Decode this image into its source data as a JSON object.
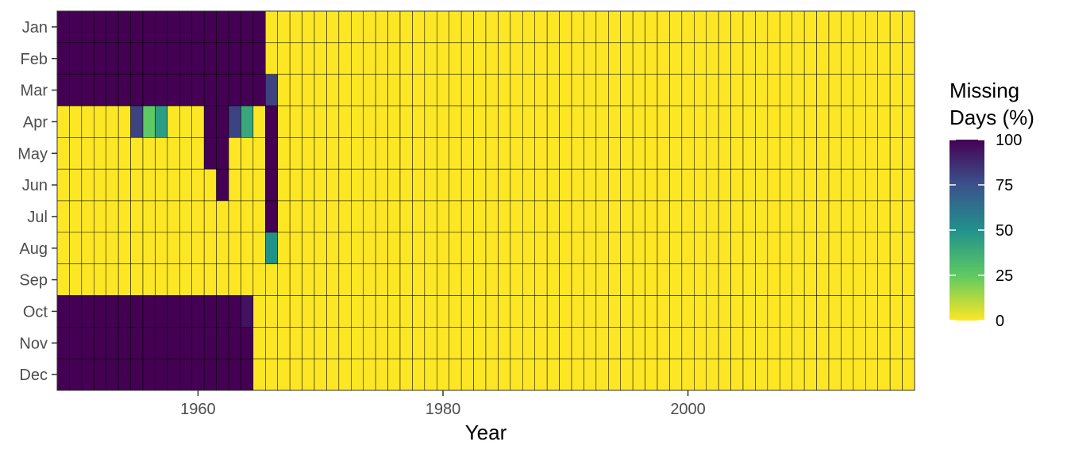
{
  "chart_data": {
    "type": "heatmap",
    "title": "",
    "xlabel": "Year",
    "ylabel": "",
    "x_range": [
      1949,
      2018
    ],
    "x_ticks": [
      1960,
      1980,
      2000
    ],
    "months": [
      "Jan",
      "Feb",
      "Mar",
      "Apr",
      "May",
      "Jun",
      "Jul",
      "Aug",
      "Sep",
      "Oct",
      "Nov",
      "Dec"
    ],
    "default_value": 0,
    "cells": [
      {
        "month": "Jan",
        "from": 1949,
        "to": 1965,
        "value": 100
      },
      {
        "month": "Feb",
        "from": 1949,
        "to": 1965,
        "value": 100
      },
      {
        "month": "Mar",
        "from": 1949,
        "to": 1965,
        "value": 100
      },
      {
        "month": "Mar",
        "from": 1966,
        "to": 1966,
        "value": 80
      },
      {
        "month": "Apr",
        "from": 1955,
        "to": 1955,
        "value": 80
      },
      {
        "month": "Apr",
        "from": 1956,
        "to": 1956,
        "value": 25
      },
      {
        "month": "Apr",
        "from": 1957,
        "to": 1957,
        "value": 45
      },
      {
        "month": "Apr",
        "from": 1961,
        "to": 1962,
        "value": 100
      },
      {
        "month": "Apr",
        "from": 1963,
        "to": 1963,
        "value": 80
      },
      {
        "month": "Apr",
        "from": 1964,
        "to": 1964,
        "value": 40
      },
      {
        "month": "Apr",
        "from": 1966,
        "to": 1966,
        "value": 100
      },
      {
        "month": "May",
        "from": 1961,
        "to": 1962,
        "value": 100
      },
      {
        "month": "May",
        "from": 1966,
        "to": 1966,
        "value": 100
      },
      {
        "month": "Jun",
        "from": 1962,
        "to": 1962,
        "value": 100
      },
      {
        "month": "Jun",
        "from": 1966,
        "to": 1966,
        "value": 100
      },
      {
        "month": "Jul",
        "from": 1966,
        "to": 1966,
        "value": 100
      },
      {
        "month": "Aug",
        "from": 1966,
        "to": 1966,
        "value": 50
      },
      {
        "month": "Oct",
        "from": 1949,
        "to": 1963,
        "value": 100
      },
      {
        "month": "Oct",
        "from": 1964,
        "to": 1964,
        "value": 95
      },
      {
        "month": "Nov",
        "from": 1949,
        "to": 1964,
        "value": 100
      },
      {
        "month": "Dec",
        "from": 1949,
        "to": 1964,
        "value": 100
      }
    ],
    "legend": {
      "title_lines": [
        "Missing",
        "Days (%)"
      ],
      "placement": "right",
      "range": [
        0,
        100
      ],
      "ticks": [
        0,
        25,
        50,
        75,
        100
      ],
      "colors": [
        "#fde725",
        "#5ec962",
        "#21918c",
        "#3b528b",
        "#440154"
      ]
    },
    "grid": false
  }
}
